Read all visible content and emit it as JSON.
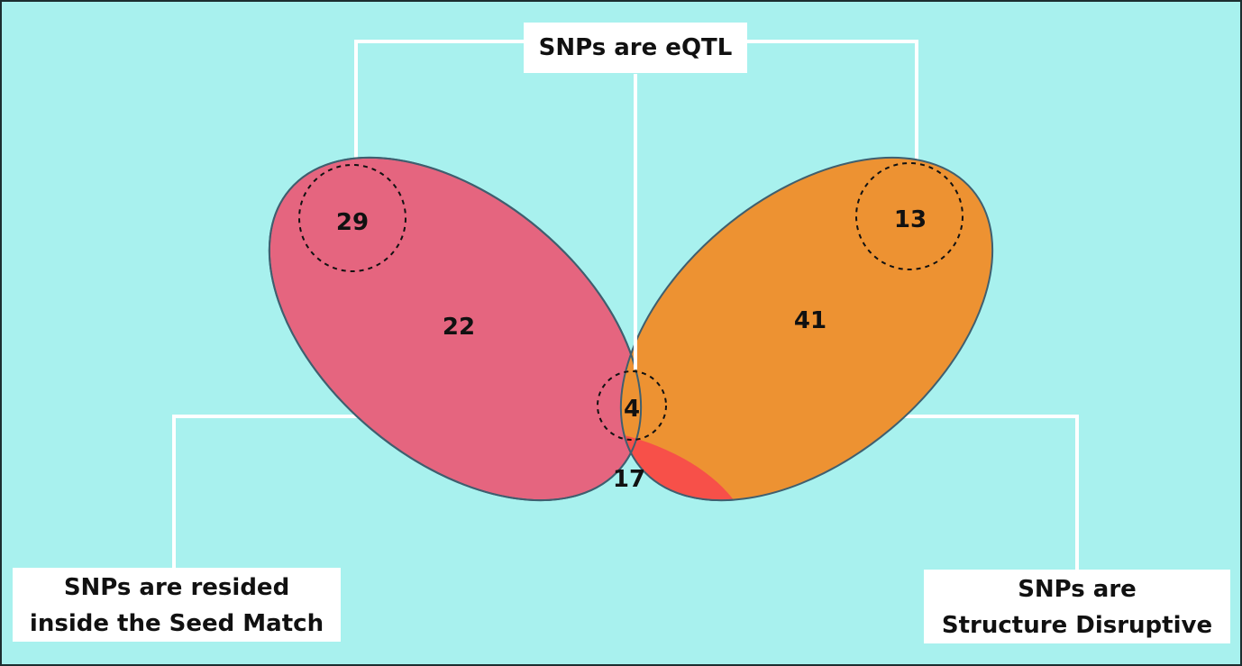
{
  "colors": {
    "background": "#a8f1ee",
    "seed_match_set": "#e5657f",
    "structure_disruptive_set": "#ed9232",
    "overlap": "#f75049",
    "outline": "#3f5f6f",
    "connector": "#ffffff"
  },
  "labels": {
    "eqtl": "SNPs are eQTL",
    "seed_match_line1": "SNPs are resided",
    "seed_match_line2": "inside the Seed Match",
    "structure_line1": "SNPs are",
    "structure_line2": "Structure Disruptive"
  },
  "counts": {
    "seed_eqtl": "29",
    "seed_only": "22",
    "overlap_eqtl": "4",
    "overlap_only": "17",
    "structure_only": "41",
    "structure_eqtl": "13"
  }
}
